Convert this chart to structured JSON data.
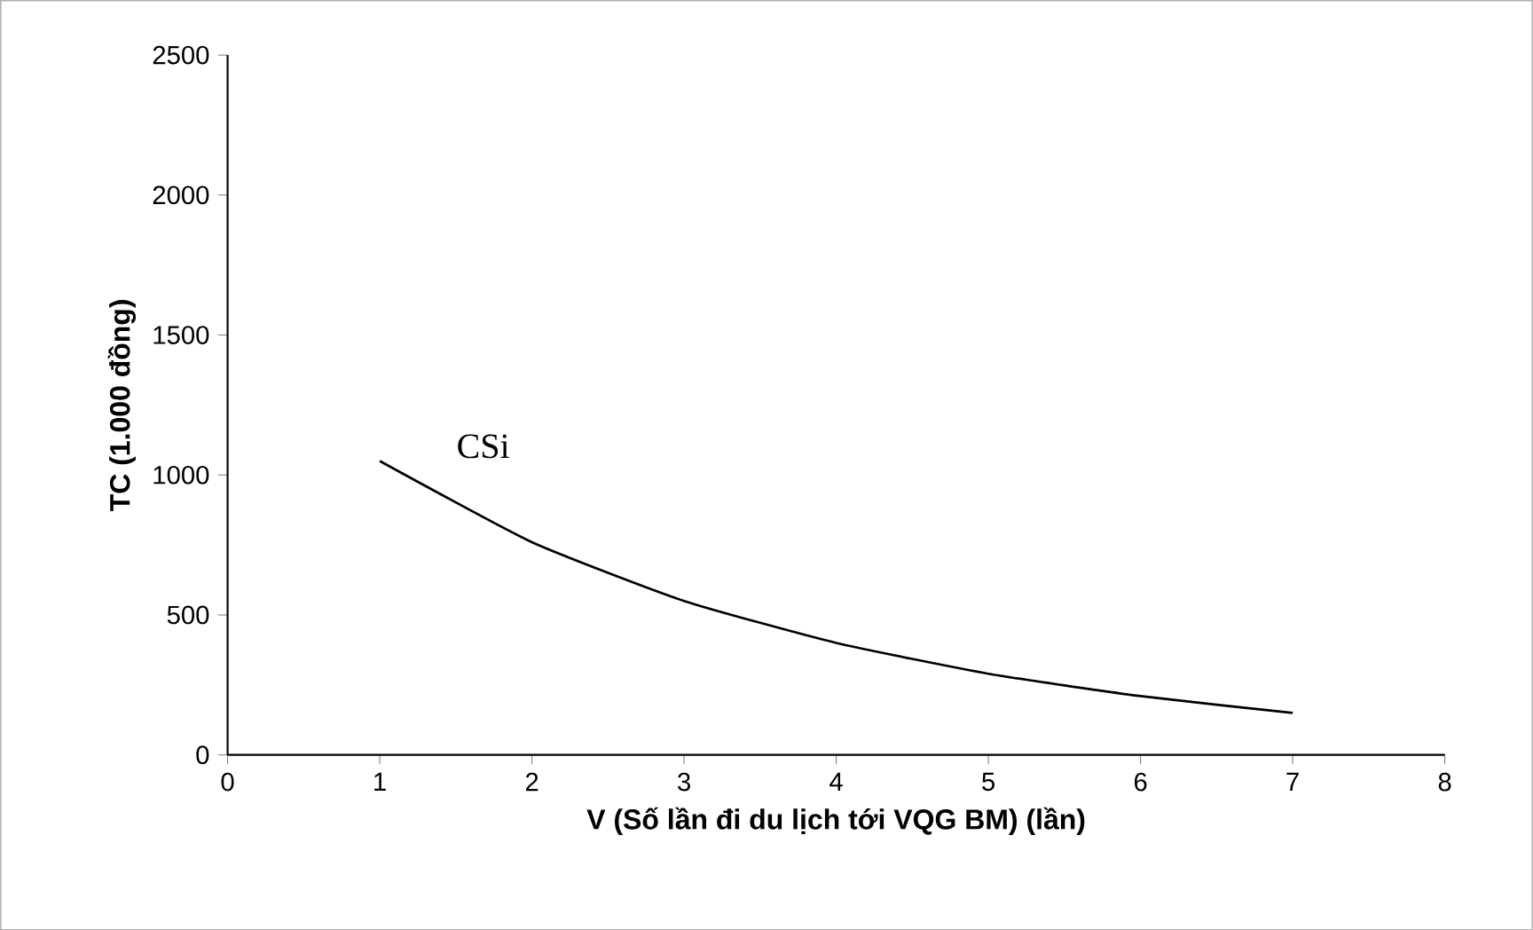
{
  "chart_data": {
    "type": "line",
    "xlabel": "V (Số lần đi du lịch tới VQG BM) (lần)",
    "ylabel": "TC (1.000 đồng)",
    "x": [
      1,
      2,
      3,
      4,
      5,
      6,
      7
    ],
    "series": [
      {
        "name": "CSi",
        "color": "#000000",
        "values": [
          1050,
          760,
          550,
          400,
          290,
          210,
          150
        ]
      }
    ],
    "xlim": [
      0,
      8
    ],
    "xticks": [
      0,
      1,
      2,
      3,
      4,
      5,
      6,
      7,
      8
    ],
    "ylim": [
      0,
      2500
    ],
    "yticks": [
      0,
      500,
      1000,
      1500,
      2000,
      2500
    ],
    "grid": false,
    "marker": "none",
    "line_style": "solid"
  }
}
